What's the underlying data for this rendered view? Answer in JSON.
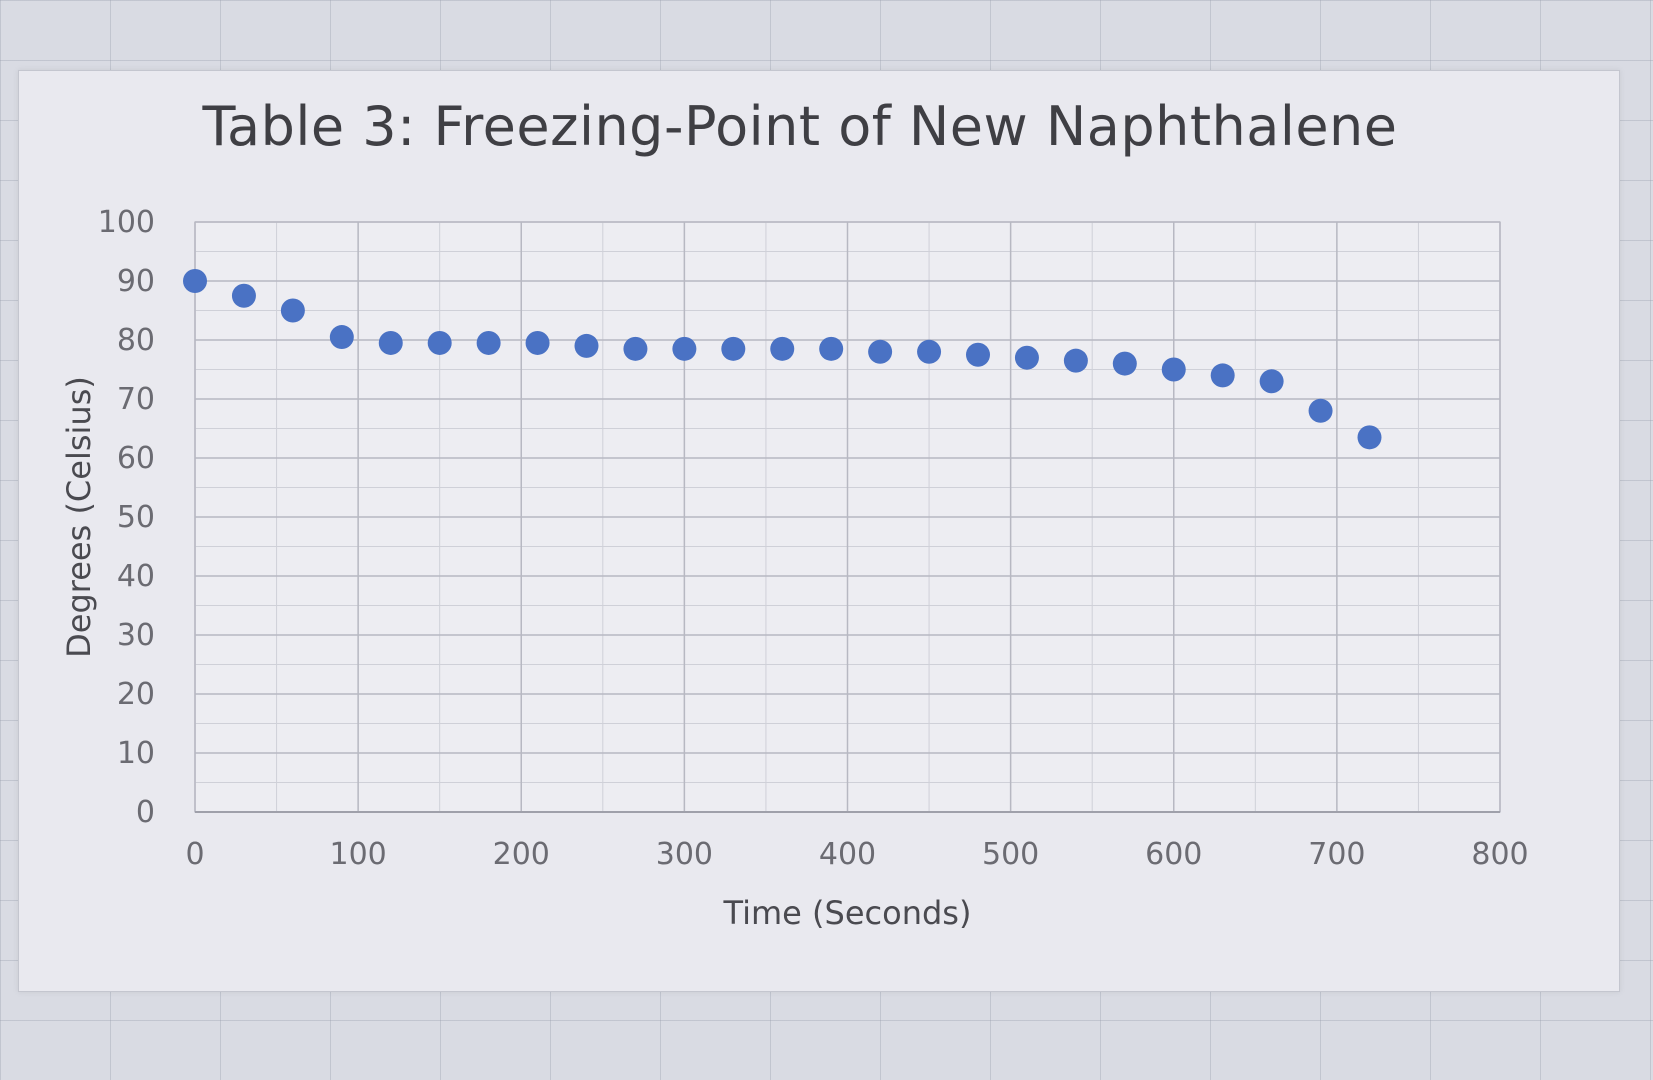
{
  "chart_data": {
    "type": "scatter",
    "title": "Table 3: Freezing-Point of New Naphthalene",
    "xlabel": "Time (Seconds)",
    "ylabel": "Degrees (Celsius)",
    "xlim": [
      0,
      800
    ],
    "ylim": [
      0,
      100
    ],
    "xticks": [
      "0",
      "100",
      "200",
      "300",
      "400",
      "500",
      "600",
      "700",
      "800"
    ],
    "yticks": [
      "0",
      "10",
      "20",
      "30",
      "40",
      "50",
      "60",
      "70",
      "80",
      "90",
      "100"
    ],
    "grid": true,
    "legend": "none",
    "marker_color": "#4a72c4",
    "x": [
      0,
      30,
      60,
      90,
      120,
      150,
      180,
      210,
      240,
      270,
      300,
      330,
      360,
      390,
      420,
      450,
      480,
      510,
      540,
      570,
      600,
      630,
      660,
      690,
      720
    ],
    "y": [
      90,
      87.5,
      85,
      80.5,
      79.5,
      79.5,
      79.5,
      79.5,
      79,
      78.5,
      78.5,
      78.5,
      78.5,
      78.5,
      78,
      78,
      77.5,
      77,
      76.5,
      76,
      75,
      74,
      73,
      68,
      63.5
    ]
  }
}
